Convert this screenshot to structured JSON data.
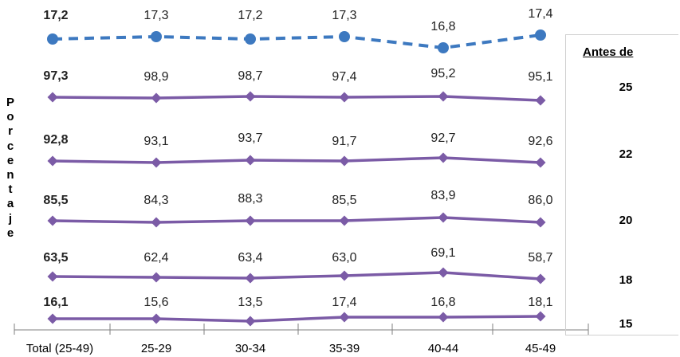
{
  "chart_data": {
    "type": "line",
    "categories": [
      "Total (25-49)",
      "25-29",
      "30-34",
      "35-39",
      "40-44",
      "45-49"
    ],
    "ylabel": "Porcentaje",
    "legend_title": "Antes de",
    "series": [
      {
        "name": "15",
        "style": "solid",
        "color": "#7b5ba6",
        "marker": "diamond",
        "values": [
          16.1,
          15.6,
          13.5,
          17.4,
          16.8,
          18.1
        ],
        "labels": [
          "16,1",
          "15,6",
          "13,5",
          "17,4",
          "16,8",
          "18,1"
        ]
      },
      {
        "name": "18",
        "style": "solid",
        "color": "#7b5ba6",
        "marker": "diamond",
        "values": [
          63.5,
          62.4,
          63.4,
          63.0,
          69.1,
          58.7
        ],
        "labels": [
          "63,5",
          "62,4",
          "63,4",
          "63,0",
          "69,1",
          "58,7"
        ]
      },
      {
        "name": "20",
        "style": "solid",
        "color": "#7b5ba6",
        "marker": "diamond",
        "values": [
          85.5,
          84.3,
          88.3,
          85.5,
          83.9,
          86.0
        ],
        "labels": [
          "85,5",
          "84,3",
          "88,3",
          "85,5",
          "83,9",
          "86,0"
        ]
      },
      {
        "name": "22",
        "style": "solid",
        "color": "#7b5ba6",
        "marker": "diamond",
        "values": [
          92.8,
          93.1,
          93.7,
          91.7,
          92.7,
          92.6
        ],
        "labels": [
          "92,8",
          "93,1",
          "93,7",
          "91,7",
          "92,7",
          "92,6"
        ]
      },
      {
        "name": "25",
        "style": "solid",
        "color": "#7b5ba6",
        "marker": "diamond",
        "values": [
          97.3,
          98.9,
          98.7,
          97.4,
          95.2,
          95.1
        ],
        "labels": [
          "97,3",
          "98,9",
          "98,7",
          "97,4",
          "95,2",
          "95,1"
        ]
      },
      {
        "name": "",
        "style": "dashed",
        "color": "#3d79c0",
        "marker": "circle",
        "values": [
          17.2,
          17.3,
          17.2,
          17.3,
          16.8,
          17.4
        ],
        "labels": [
          "17,2",
          "17,3",
          "17,2",
          "17,3",
          "16,8",
          "17,4"
        ]
      }
    ]
  }
}
